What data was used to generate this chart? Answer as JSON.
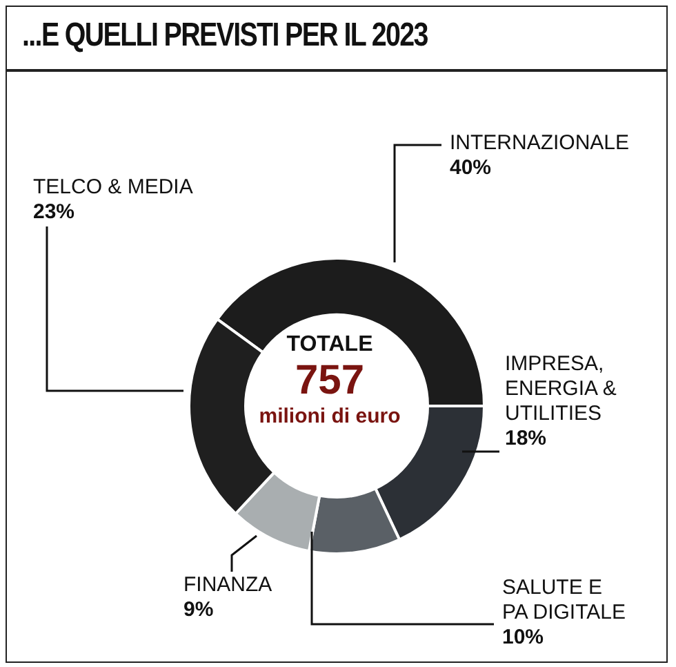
{
  "chart_data": {
    "type": "donut",
    "title": "...E QUELLI PREVISTI PER IL 2023",
    "categories": [
      "INTERNAZIONALE",
      "IMPRESA, ENERGIA & UTILITIES",
      "SALUTE E PA DIGITALE",
      "FINANZA",
      "TELCO & MEDIA"
    ],
    "values": [
      40,
      18,
      10,
      9,
      23
    ],
    "value_labels": [
      "40%",
      "18%",
      "10%",
      "9%",
      "23%"
    ],
    "colors": [
      "#1c1c1c",
      "#2c3036",
      "#5a6066",
      "#a9aeb0",
      "#1f1f1f"
    ],
    "annotations": [
      "TOTALE",
      "757",
      "milioni di euro"
    ]
  }
}
